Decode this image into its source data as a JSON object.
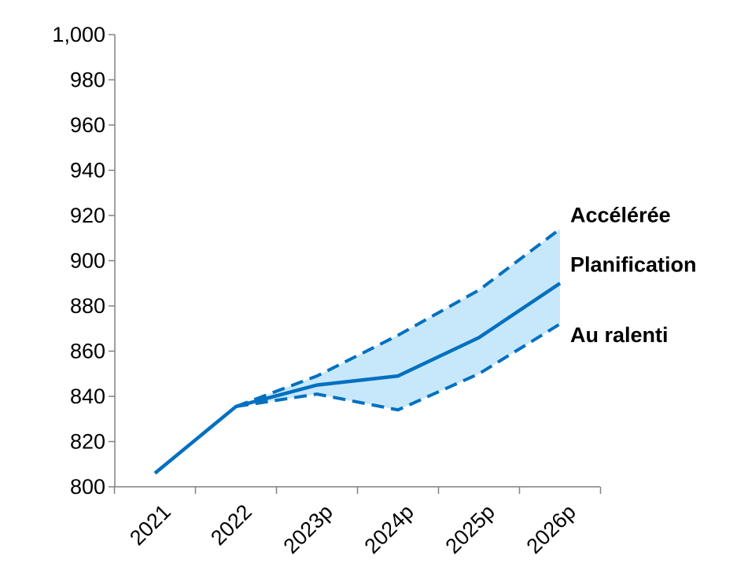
{
  "chart_data": {
    "type": "line",
    "title": "",
    "xlabel": "",
    "ylabel": "",
    "categories": [
      "2021",
      "2022",
      "2023p",
      "2024p",
      "2025p",
      "2026p"
    ],
    "ylim": [
      800,
      1000
    ],
    "yticks": [
      800,
      820,
      840,
      860,
      880,
      900,
      920,
      940,
      960,
      980,
      1000
    ],
    "ytick_labels": [
      "800",
      "820",
      "840",
      "860",
      "880",
      "900",
      "920",
      "940",
      "960",
      "980",
      "1,000"
    ],
    "grid": false,
    "legend": "right-end labels",
    "series": [
      {
        "name": "Accélérée",
        "values": [
          null,
          835.5,
          849,
          867,
          887,
          914
        ],
        "style": "dashed"
      },
      {
        "name": "Planification",
        "values": [
          806,
          835.5,
          845,
          849,
          866,
          890
        ],
        "style": "solid"
      },
      {
        "name": "Au ralenti",
        "values": [
          null,
          835.5,
          841,
          834,
          850,
          872
        ],
        "style": "dashed"
      }
    ],
    "band": {
      "upper": "Accélérée",
      "lower": "Au ralenti"
    },
    "colors": {
      "line": "#0070C0",
      "band_fill": "#C7E8FB",
      "axis": "#808080"
    }
  }
}
